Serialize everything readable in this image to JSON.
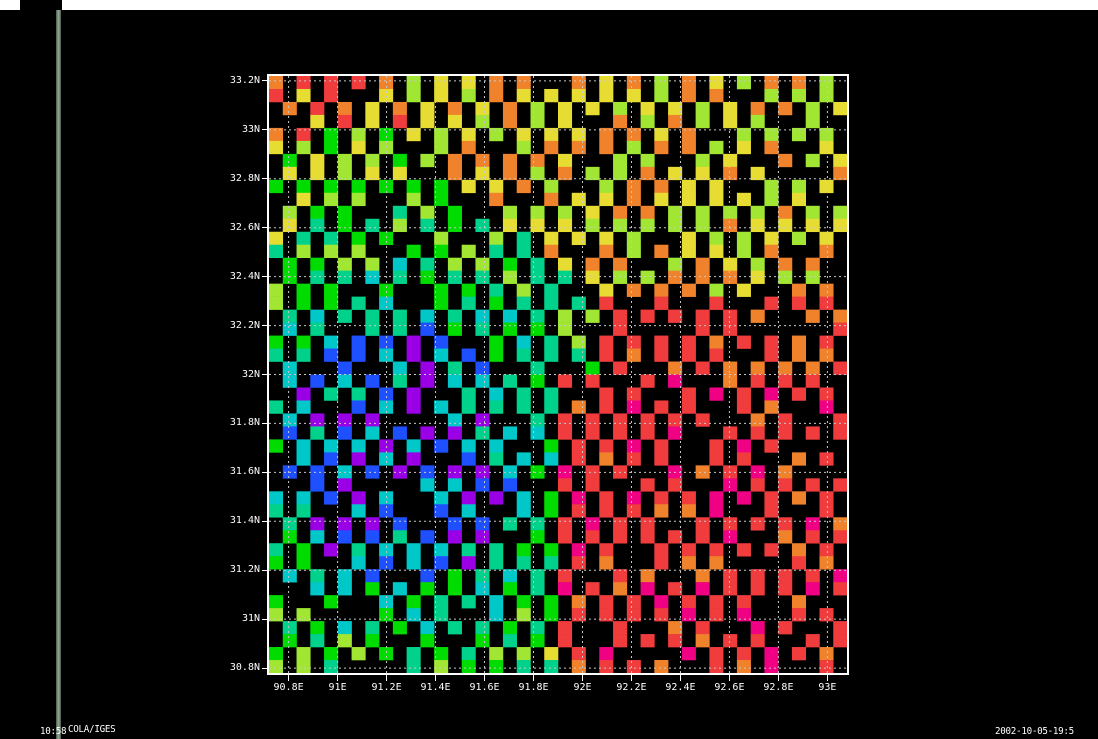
{
  "header": {
    "left_time": "10:58",
    "left_credit": "COLA/IGES",
    "right_datetime": "2002-10-05-19:5"
  },
  "map": {
    "x_tick_labels": [
      "90.8E",
      "91E",
      "91.2E",
      "91.4E",
      "91.6E",
      "91.8E",
      "92E",
      "92.2E",
      "92.4E",
      "92.6E",
      "92.8E",
      "93E"
    ],
    "y_tick_labels": [
      "33.2N",
      "33N",
      "32.8N",
      "32.6N",
      "32.4N",
      "32.2N",
      "32N",
      "31.8N",
      "31.6N",
      "31.4N",
      "31.2N",
      "31N",
      "30.8N"
    ],
    "x_range": [
      90.72,
      93.08
    ],
    "y_range": [
      30.78,
      33.22
    ],
    "palette": {
      "purple": "#9a00e6",
      "blue": "#1e50ff",
      "cyan": "#00c8c8",
      "teal": "#00d28c",
      "green": "#00dc00",
      "lime": "#a0e632",
      "yellow": "#e6dc32",
      "orange": "#f0822c",
      "red": "#f03c3c",
      "magenta": "#f00082"
    },
    "gridline_color": "#c8c8c8",
    "frame_color": "#ffffff"
  }
}
